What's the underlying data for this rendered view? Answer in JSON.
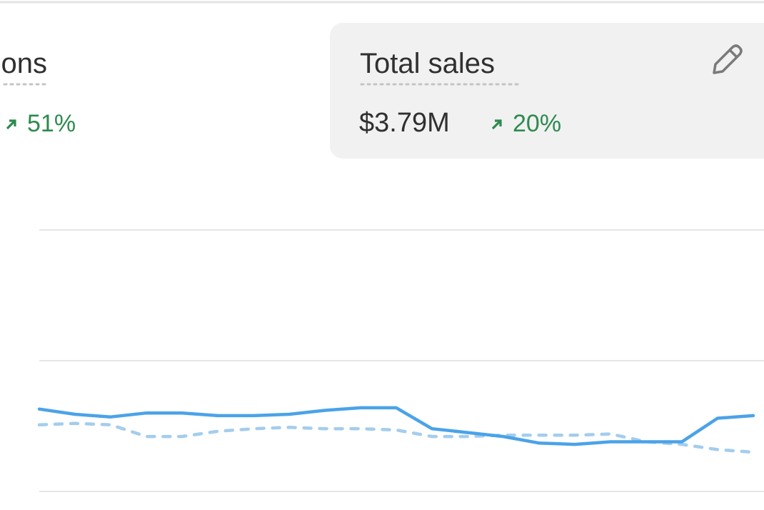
{
  "metrics": [
    {
      "label": "ons",
      "change": "51%"
    },
    {
      "label": "Total sales",
      "value": "$3.79M",
      "change": "20%"
    }
  ],
  "chart_data": {
    "type": "line",
    "categories": [
      null,
      null,
      null,
      null,
      null,
      null,
      null,
      null,
      null,
      null,
      null,
      null,
      null,
      null,
      null,
      null,
      null,
      null,
      null,
      null,
      null
    ],
    "series": [
      {
        "color": "#4aa3e8",
        "dashed": false,
        "values": [
          0.63,
          0.59,
          0.57,
          0.6,
          0.6,
          0.58,
          0.58,
          0.59,
          0.62,
          0.64,
          0.64,
          0.48,
          0.45,
          0.42,
          0.37,
          0.36,
          0.38,
          0.38,
          0.38,
          0.56,
          0.58
        ]
      },
      {
        "color": "#a3cdee",
        "dashed": true,
        "values": [
          0.51,
          0.52,
          0.51,
          0.42,
          0.42,
          0.46,
          0.48,
          0.49,
          0.48,
          0.48,
          0.47,
          0.42,
          0.42,
          0.43,
          0.43,
          0.43,
          0.44,
          0.38,
          0.36,
          0.32,
          0.3
        ]
      }
    ],
    "ylim": [
      0,
      2
    ],
    "yticks": [
      0,
      1,
      2
    ],
    "grid": true
  }
}
